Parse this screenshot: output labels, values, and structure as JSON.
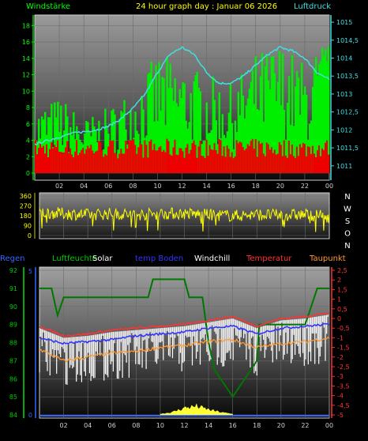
{
  "chart_data": [
    {
      "type": "line",
      "title": "24 hour graph day : Januar 06 2026",
      "left_label": "Windstärke",
      "right_label": "Luftdruck",
      "x_ticks": [
        "02",
        "04",
        "06",
        "08",
        "10",
        "12",
        "14",
        "16",
        "18",
        "20",
        "22",
        "00"
      ],
      "y_left_ticks": [
        "0",
        "2",
        "4",
        "6",
        "8",
        "10",
        "12",
        "14",
        "16",
        "18"
      ],
      "y_left_range": [
        0,
        19
      ],
      "y_right_ticks": [
        "1011",
        "1011,5",
        "1012",
        "1012,5",
        "1013",
        "1013,5",
        "1014",
        "1014,5",
        "1015"
      ],
      "y_right_range": [
        1010.6,
        1015.2
      ],
      "series": [
        {
          "name": "Luftdruck",
          "color": "#40e0e0",
          "x": [
            0,
            1,
            2,
            3,
            4,
            5,
            6,
            7,
            8,
            9,
            10,
            11,
            12,
            13,
            14,
            15,
            16,
            17,
            18,
            19,
            20,
            21,
            22,
            23,
            24
          ],
          "values": [
            1011.6,
            1011.7,
            1011.8,
            1011.9,
            1011.95,
            1012.0,
            1012.1,
            1012.3,
            1012.6,
            1013.0,
            1013.6,
            1014.1,
            1014.3,
            1014.1,
            1013.6,
            1013.3,
            1013.3,
            1013.5,
            1013.8,
            1014.1,
            1014.3,
            1014.2,
            1014.0,
            1013.6,
            1013.4
          ]
        },
        {
          "name": "Windstärke",
          "color": "#00ff00",
          "x": [
            0,
            2,
            4,
            6,
            8,
            10,
            12,
            14,
            16,
            18,
            20,
            22,
            24
          ],
          "values": [
            6,
            7,
            5,
            6,
            8,
            11,
            10,
            9,
            8,
            11,
            12,
            10,
            13
          ]
        },
        {
          "name": "Windböen",
          "color": "#ff0000",
          "x": [
            0,
            2,
            4,
            6,
            8,
            10,
            12,
            14,
            16,
            18,
            20,
            22,
            24
          ],
          "values": [
            3,
            3,
            3,
            3,
            3,
            3,
            3,
            3,
            3,
            3,
            3,
            3,
            3
          ]
        }
      ]
    },
    {
      "type": "line",
      "right_label": "NWSON",
      "compass": [
        "N",
        "W",
        "S",
        "O",
        "N"
      ],
      "x_ticks": [],
      "y_left_ticks": [
        "360",
        "270",
        "180",
        "90",
        "0"
      ],
      "y_left_range": [
        0,
        360
      ],
      "series": [
        {
          "name": "Windrichtung",
          "color": "#ffff00",
          "x": [
            0,
            2,
            4,
            6,
            8,
            10,
            12,
            14,
            16,
            18,
            20,
            22,
            24
          ],
          "values": [
            210,
            200,
            190,
            200,
            190,
            200,
            200,
            190,
            180,
            190,
            185,
            190,
            170
          ]
        }
      ]
    },
    {
      "type": "line",
      "legend": [
        "Regen",
        "Luftfeuchte",
        "Solar",
        "temp Boden",
        "Windchill",
        "Temperatur",
        "Taupunkt"
      ],
      "legend_colors": [
        "#3366ff",
        "#00cc00",
        "#ffffff",
        "#3333ff",
        "#ffffff",
        "#ff3333",
        "#ff9933"
      ],
      "x_ticks": [
        "02",
        "04",
        "06",
        "08",
        "10",
        "12",
        "14",
        "16",
        "18",
        "20",
        "22",
        "00"
      ],
      "y_humidity_ticks": [
        "84",
        "85",
        "86",
        "87",
        "88",
        "89",
        "90",
        "91",
        "92"
      ],
      "y_humidity_range": [
        84,
        92
      ],
      "y_rain_ticks": [
        "0",
        "5"
      ],
      "y_temp_ticks": [
        "2,5",
        "2",
        "1,5",
        "1",
        "0,5",
        "0",
        "-0,5",
        "-1",
        "-1,5",
        "-2",
        "-2,5",
        "-3",
        "-3,5",
        "-4",
        "-4,5",
        "-5"
      ],
      "y_temp_range": [
        -5,
        2.5
      ],
      "series": [
        {
          "name": "Temperatur",
          "color": "#ff3333",
          "x": [
            0,
            2,
            4,
            6,
            8,
            10,
            12,
            14,
            16,
            18,
            20,
            22,
            24
          ],
          "values": [
            -0.4,
            -0.9,
            -0.8,
            -0.6,
            -0.5,
            -0.4,
            -0.3,
            -0.1,
            0.1,
            -0.4,
            0.0,
            0.1,
            0.3
          ]
        },
        {
          "name": "temp Boden",
          "color": "#3333ff",
          "x": [
            0,
            2,
            4,
            6,
            8,
            10,
            12,
            14,
            16,
            18,
            20,
            22,
            24
          ],
          "values": [
            -1.0,
            -1.3,
            -1.2,
            -1.1,
            -0.9,
            -0.8,
            -0.7,
            -0.5,
            -0.4,
            -0.8,
            -0.5,
            -0.4,
            -0.3
          ]
        },
        {
          "name": "Taupunkt",
          "color": "#ff9933",
          "x": [
            0,
            2,
            4,
            6,
            8,
            10,
            12,
            14,
            16,
            18,
            20,
            22,
            24
          ],
          "values": [
            -1.6,
            -2.2,
            -2.0,
            -1.8,
            -1.7,
            -1.5,
            -1.4,
            -1.2,
            -1.1,
            -1.5,
            -1.3,
            -1.2,
            -1.0
          ]
        },
        {
          "name": "Luftfeuchte",
          "color": "#008800",
          "x": [
            0,
            1,
            1.5,
            2,
            5,
            5.5,
            9,
            9.4,
            12,
            12.4,
            13.5,
            14,
            14.5,
            15,
            16,
            17,
            18,
            18.2,
            22,
            22.5,
            23,
            24
          ],
          "values": [
            91,
            91,
            89.5,
            90.5,
            90.5,
            90.5,
            90.5,
            91.5,
            91.5,
            90.5,
            90.5,
            88,
            86.5,
            86,
            85,
            86,
            87,
            89,
            89,
            90,
            91,
            91
          ]
        },
        {
          "name": "Solar",
          "color": "#ffff33",
          "x": [
            10,
            11,
            12,
            13,
            14,
            15,
            16
          ],
          "values": [
            0.1,
            0.3,
            0.8,
            1.0,
            0.6,
            0.3,
            0.1
          ]
        }
      ]
    }
  ]
}
